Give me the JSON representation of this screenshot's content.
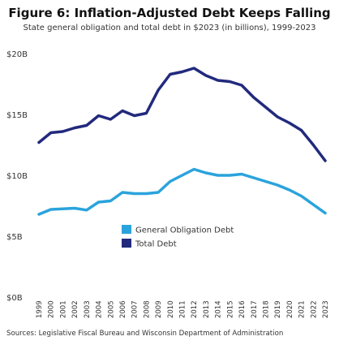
{
  "title": "Figure 6: Inflation-Adjusted Debt Keeps Falling",
  "subtitle": "State general obligation and total debt in $2023 (in billions), 1999-2023",
  "source": "Sources: Legislative Fiscal Bureau and Wisconsin Department of Administration",
  "colors": {
    "general_obligation": "#2aa3dc",
    "total": "#222a7d",
    "text": "#333333"
  },
  "chart_data": {
    "type": "line",
    "title": "Figure 6: Inflation-Adjusted Debt Keeps Falling",
    "subtitle": "State general obligation and total debt in $2023 (in billions), 1999-2023",
    "xlabel": "",
    "ylabel": "",
    "ylim": [
      0,
      20
    ],
    "yticks": [
      {
        "value": 0,
        "label": "$0B"
      },
      {
        "value": 5,
        "label": "$5B"
      },
      {
        "value": 10,
        "label": "$10B"
      },
      {
        "value": 15,
        "label": "$15B"
      },
      {
        "value": 20,
        "label": "$20B"
      }
    ],
    "grid": false,
    "legend_placement": "center",
    "x": [
      "1999",
      "2000",
      "2001",
      "2002",
      "2003",
      "2004",
      "2005",
      "2006",
      "2007",
      "2008",
      "2009",
      "2010",
      "2011",
      "2012",
      "2013",
      "2014",
      "2015",
      "2016",
      "2017",
      "2018",
      "2019",
      "2020",
      "2021",
      "2022",
      "2023"
    ],
    "series": [
      {
        "name": "General Obligation Debt",
        "color": "#2aa3dc",
        "values": [
          6.8,
          7.2,
          7.25,
          7.3,
          7.15,
          7.8,
          7.9,
          8.6,
          8.5,
          8.5,
          8.6,
          9.5,
          10.0,
          10.5,
          10.2,
          10.0,
          10.0,
          10.1,
          9.8,
          9.5,
          9.2,
          8.8,
          8.3,
          7.6,
          6.9
        ]
      },
      {
        "name": "Total Debt",
        "color": "#222a7d",
        "values": [
          12.7,
          13.5,
          13.6,
          13.9,
          14.1,
          14.9,
          14.6,
          15.3,
          14.9,
          15.1,
          17.0,
          18.3,
          18.5,
          18.8,
          18.2,
          17.8,
          17.7,
          17.4,
          16.4,
          15.6,
          14.8,
          14.3,
          13.7,
          12.5,
          11.2
        ]
      }
    ]
  }
}
